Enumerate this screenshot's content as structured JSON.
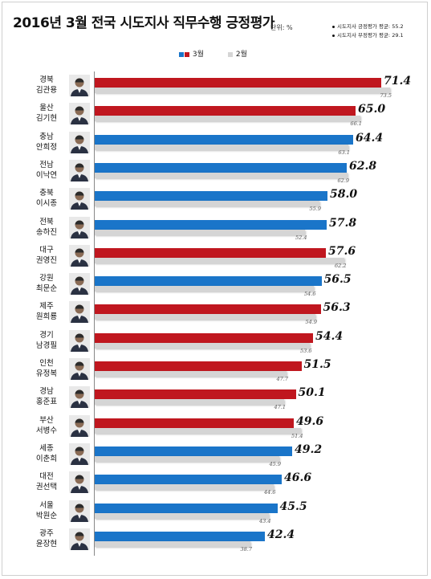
{
  "title": "2016년 3월 전국 시도지사 직무수행 긍정평가",
  "unit": "단위: %",
  "averages": [
    "시도지사 긍정평가 평균: 55.2",
    "시도지사 부정평가 평균: 29.1"
  ],
  "legend": {
    "march": "3월",
    "feb": "2월"
  },
  "colors": {
    "red": "#c0171f",
    "blue": "#1a75c9",
    "gray": "#d5d5d5"
  },
  "chart_data": {
    "type": "bar",
    "orientation": "horizontal",
    "title": "2016년 3월 전국 시도지사 직무수행 긍정평가",
    "unit": "%",
    "categories": [
      {
        "region": "경북",
        "name": "김관용"
      },
      {
        "region": "울산",
        "name": "김기현"
      },
      {
        "region": "충남",
        "name": "안희정"
      },
      {
        "region": "전남",
        "name": "이낙연"
      },
      {
        "region": "충북",
        "name": "이시종"
      },
      {
        "region": "전북",
        "name": "송하진"
      },
      {
        "region": "대구",
        "name": "권영진"
      },
      {
        "region": "강원",
        "name": "최문순"
      },
      {
        "region": "제주",
        "name": "원희룡"
      },
      {
        "region": "경기",
        "name": "남경필"
      },
      {
        "region": "인천",
        "name": "유정복"
      },
      {
        "region": "경남",
        "name": "홍준표"
      },
      {
        "region": "부산",
        "name": "서병수"
      },
      {
        "region": "세종",
        "name": "이춘희"
      },
      {
        "region": "대전",
        "name": "권선택"
      },
      {
        "region": "서울",
        "name": "박원순"
      },
      {
        "region": "광주",
        "name": "윤장현"
      }
    ],
    "series": [
      {
        "name": "3월",
        "values": [
          71.4,
          65.0,
          64.4,
          62.8,
          58.0,
          57.8,
          57.6,
          56.5,
          56.3,
          54.4,
          51.5,
          50.1,
          49.6,
          49.2,
          46.6,
          45.5,
          42.4
        ],
        "labels": [
          "71.4",
          "65.0",
          "64.4",
          "62.8",
          "58.0",
          "57.8",
          "57.6",
          "56.5",
          "56.3",
          "54.4",
          "51.5",
          "50.1",
          "49.6",
          "49.2",
          "46.6",
          "45.5",
          "42.4"
        ]
      },
      {
        "name": "2월",
        "values": [
          73.5,
          66.1,
          63.1,
          62.9,
          55.9,
          52.4,
          62.2,
          54.6,
          54.9,
          53.6,
          47.7,
          47.1,
          51.4,
          45.9,
          44.6,
          43.4,
          38.7
        ],
        "labels": [
          "73.5",
          "66.1",
          "63.1",
          "62.9",
          "55.9",
          "52.4",
          "62.2",
          "54.6",
          "54.9",
          "53.6",
          "47.7",
          "47.1",
          "51.4",
          "45.9",
          "44.6",
          "43.4",
          "38.7"
        ]
      }
    ],
    "bar_colors": [
      "red",
      "red",
      "blue",
      "blue",
      "blue",
      "blue",
      "red",
      "blue",
      "red",
      "red",
      "red",
      "red",
      "red",
      "blue",
      "blue",
      "blue",
      "blue"
    ],
    "xlim": [
      0,
      75
    ],
    "grid": false,
    "legend_position": "top-center"
  }
}
